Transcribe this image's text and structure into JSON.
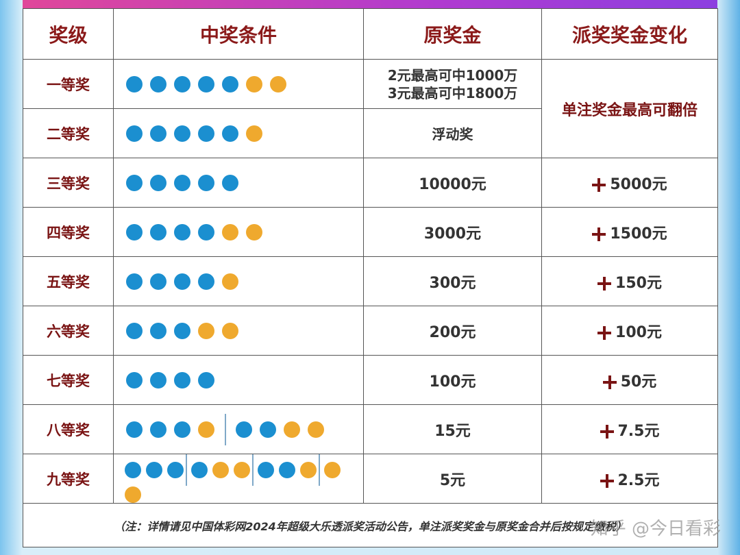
{
  "header": [
    "奖级",
    "中奖条件",
    "原奖金",
    "派奖奖金变化"
  ],
  "rows": [
    {
      "level": "一等奖",
      "prize": [
        "2元最高可中1000万",
        "3元最高可中1800万"
      ],
      "bonus": "单注奖金最高可翻倍"
    },
    {
      "level": "二等奖",
      "prize": "浮动奖"
    },
    {
      "level": "三等奖",
      "prize": "10000元",
      "bonus": "5000元"
    },
    {
      "level": "四等奖",
      "prize": "3000元",
      "bonus": "1500元"
    },
    {
      "level": "五等奖",
      "prize": "300元",
      "bonus": "150元"
    },
    {
      "level": "六等奖",
      "prize": "200元",
      "bonus": "100元"
    },
    {
      "level": "七等奖",
      "prize": "100元",
      "bonus": "50元"
    },
    {
      "level": "八等奖",
      "prize": "15元",
      "bonus": "7.5元"
    },
    {
      "level": "九等奖",
      "prize": "5元",
      "bonus": "2.5元"
    }
  ],
  "footnote": "（注：详情请见中国体彩网2024年超级大乐透派奖活动公告，单注派奖奖金与原奖金合并后按规定缴税）",
  "watermark": "知乎 @今日看彩"
}
